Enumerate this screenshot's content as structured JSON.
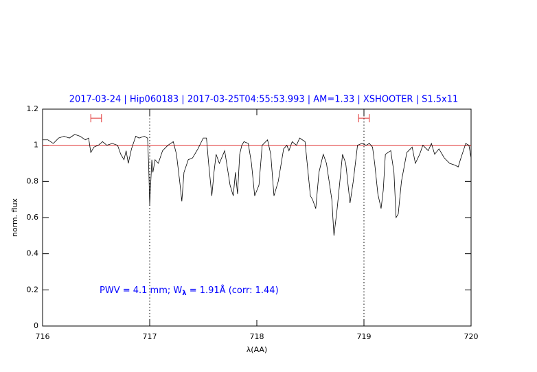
{
  "chart_data": {
    "type": "line",
    "title": "2017-03-24 | Hip060183 | 2017-03-25T04:55:53.993 | AM=1.33 | XSHOOTER | S1.5x11",
    "xlabel": "λ(AA)",
    "ylabel": "norm. flux",
    "annotation": [
      "PWV = 4.1 mm; W",
      "λ",
      " = 1.91Å (corr: 1.44)"
    ],
    "color": "#000000",
    "text_color": "#0000ff",
    "x": [
      716.0,
      716.05,
      716.1,
      716.15,
      716.2,
      716.25,
      716.3,
      716.35,
      716.4,
      716.43,
      716.45,
      716.48,
      716.52,
      716.56,
      716.6,
      716.65,
      716.7,
      716.73,
      716.76,
      716.78,
      716.8,
      716.83,
      716.87,
      716.9,
      716.95,
      716.98,
      716.99,
      717.0,
      717.02,
      717.03,
      717.05,
      717.08,
      717.12,
      717.17,
      717.22,
      717.25,
      717.28,
      717.3,
      717.32,
      717.36,
      717.4,
      717.45,
      717.5,
      717.53,
      717.55,
      717.58,
      717.6,
      717.62,
      717.65,
      717.7,
      717.75,
      717.78,
      717.8,
      717.82,
      717.84,
      717.86,
      717.88,
      717.92,
      717.95,
      717.98,
      718.02,
      718.05,
      718.1,
      718.13,
      718.16,
      718.2,
      718.25,
      718.28,
      718.3,
      718.33,
      718.37,
      718.4,
      718.45,
      718.5,
      718.52,
      718.55,
      718.58,
      718.62,
      718.65,
      718.7,
      718.72,
      718.75,
      718.8,
      718.83,
      718.87,
      718.9,
      718.94,
      718.98,
      719.02,
      719.05,
      719.08,
      719.1,
      719.13,
      719.16,
      719.18,
      719.2,
      719.25,
      719.28,
      719.3,
      719.32,
      719.35,
      719.4,
      719.45,
      719.48,
      719.52,
      719.55,
      719.6,
      719.63,
      719.66,
      719.7,
      719.75,
      719.8,
      719.85,
      719.88,
      719.9,
      719.95,
      719.98,
      720.0
    ],
    "values": [
      1.03,
      1.03,
      1.01,
      1.04,
      1.05,
      1.04,
      1.06,
      1.05,
      1.03,
      1.04,
      0.96,
      0.99,
      1.0,
      1.02,
      1.0,
      1.01,
      1.0,
      0.95,
      0.92,
      0.97,
      0.9,
      0.98,
      1.05,
      1.04,
      1.05,
      1.04,
      0.9,
      0.67,
      0.92,
      0.85,
      0.92,
      0.9,
      0.97,
      1.0,
      1.02,
      0.95,
      0.8,
      0.69,
      0.85,
      0.92,
      0.93,
      0.98,
      1.04,
      1.04,
      0.9,
      0.72,
      0.85,
      0.95,
      0.9,
      0.97,
      0.78,
      0.72,
      0.85,
      0.73,
      0.95,
      1.0,
      1.02,
      1.01,
      0.9,
      0.72,
      0.78,
      1.0,
      1.03,
      0.95,
      0.72,
      0.8,
      0.98,
      1.0,
      0.97,
      1.02,
      1.0,
      1.04,
      1.02,
      0.72,
      0.7,
      0.65,
      0.85,
      0.95,
      0.9,
      0.7,
      0.5,
      0.65,
      0.95,
      0.9,
      0.68,
      0.8,
      1.0,
      1.01,
      1.0,
      1.01,
      0.99,
      0.9,
      0.73,
      0.65,
      0.75,
      0.95,
      0.97,
      0.85,
      0.6,
      0.62,
      0.8,
      0.96,
      0.99,
      0.9,
      0.95,
      1.0,
      0.97,
      1.01,
      0.95,
      0.98,
      0.93,
      0.9,
      0.89,
      0.88,
      0.92,
      1.01,
      1.0,
      0.93
    ],
    "xlim": [
      716,
      720
    ],
    "ylim": [
      0,
      1.2
    ],
    "xticks": [
      716,
      717,
      718,
      719,
      720
    ],
    "yticks": [
      0,
      0.2,
      0.4,
      0.6,
      0.8,
      1,
      1.2
    ],
    "hline": 1,
    "hline_color": "#e03030",
    "vlines": [
      717,
      719
    ],
    "intervals": [
      {
        "x": [
          716.45,
          716.55
        ],
        "y": 1.15
      },
      {
        "x": [
          718.95,
          719.05
        ],
        "y": 1.15
      }
    ],
    "interval_color": "#e03030"
  }
}
